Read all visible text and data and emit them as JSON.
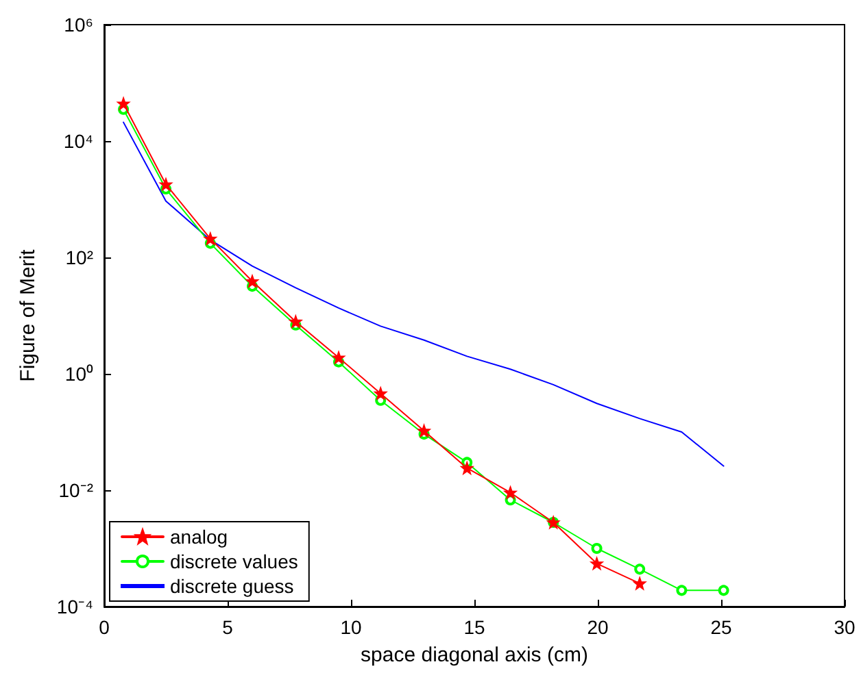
{
  "chart_data": {
    "type": "line",
    "xlabel": "space diagonal axis (cm)",
    "ylabel": "Figure of Merit",
    "log": "y",
    "grid": false,
    "legend": "bottom left",
    "xlim": [
      0,
      30
    ],
    "xticks": [
      0,
      5,
      10,
      15,
      20,
      25,
      30
    ],
    "ylim": [
      0.0001,
      1000000
    ],
    "yticks": [
      {
        "value": 0.0001,
        "label": "10⁻⁴"
      },
      {
        "value": 0.01,
        "label": "10⁻²"
      },
      {
        "value": 1,
        "label": "10⁰"
      },
      {
        "value": 100,
        "label": "10²"
      },
      {
        "value": 10000,
        "label": "10⁴"
      },
      {
        "value": 1000000,
        "label": "10⁶"
      }
    ],
    "series": [
      {
        "name": "analog",
        "color": "#ff0000",
        "marker": "star",
        "x": [
          0.78,
          2.5,
          4.3,
          6.0,
          7.76,
          9.5,
          11.2,
          12.96,
          14.7,
          16.46,
          18.2,
          19.96,
          21.7
        ],
        "values": [
          44000,
          1800,
          210,
          39,
          7.9,
          1.9,
          0.46,
          0.105,
          0.024,
          0.0091,
          0.0028,
          0.00055,
          0.00025
        ]
      },
      {
        "name": "discrete values",
        "color": "#00ff00",
        "marker": "circle",
        "x": [
          0.78,
          2.5,
          4.3,
          6.0,
          7.76,
          9.5,
          11.2,
          12.96,
          14.7,
          16.46,
          18.2,
          19.96,
          21.7,
          23.4,
          25.1
        ],
        "values": [
          35000,
          1500,
          175,
          32,
          6.9,
          1.6,
          0.35,
          0.092,
          0.03,
          0.0068,
          0.0028,
          0.001,
          0.00044,
          0.00019,
          0.00019
        ]
      },
      {
        "name": "discrete guess",
        "color": "#0000ff",
        "marker": "none",
        "x": [
          0.78,
          2.5,
          4.3,
          6.0,
          7.76,
          9.5,
          11.2,
          12.96,
          14.7,
          16.46,
          18.2,
          19.96,
          21.7,
          23.4,
          25.1
        ],
        "values": [
          21000,
          930,
          200,
          71,
          30,
          13.5,
          6.6,
          3.8,
          2.0,
          1.2,
          0.65,
          0.31,
          0.17,
          0.1,
          0.026
        ]
      }
    ]
  }
}
